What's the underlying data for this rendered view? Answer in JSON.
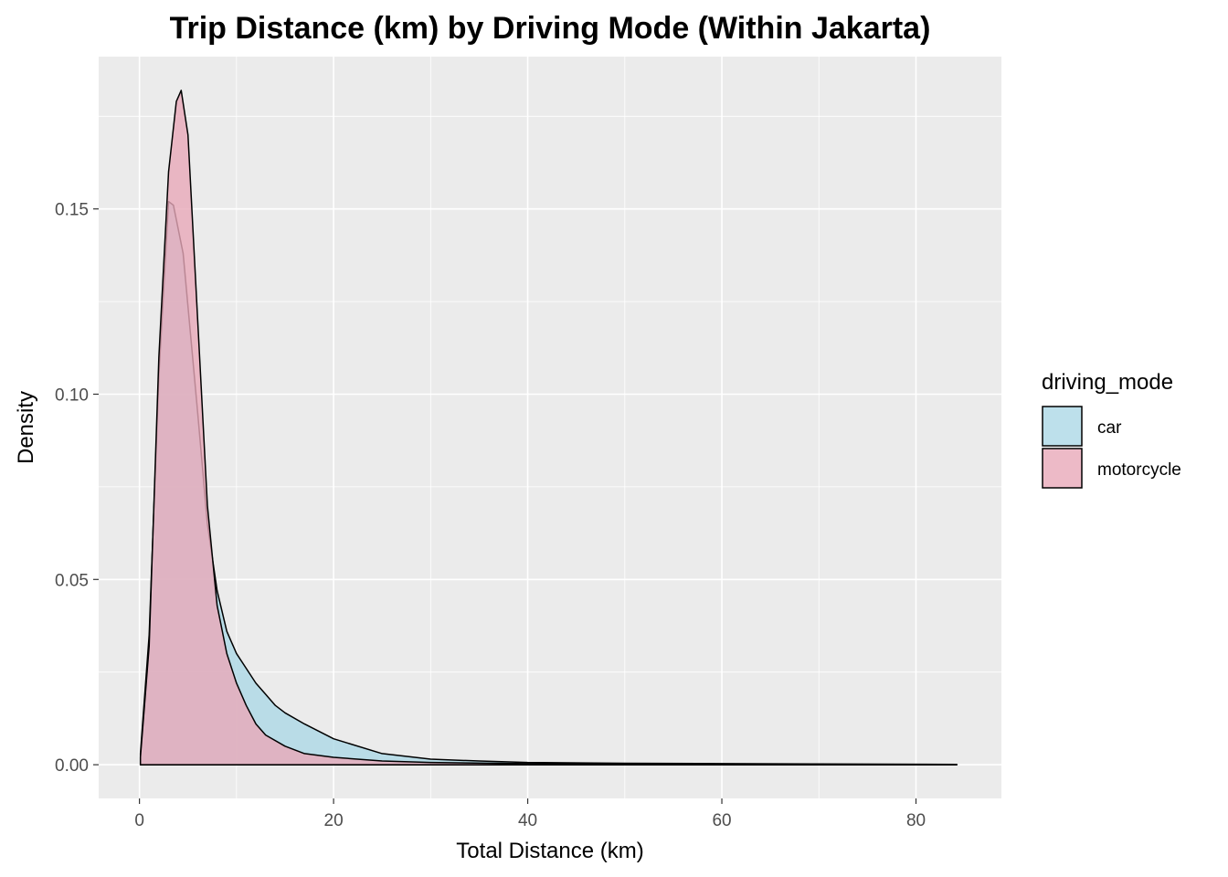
{
  "chart_data": {
    "type": "area",
    "title": "Trip Distance (km) by Driving Mode (Within Jakarta)",
    "xlabel": "Total Distance (km)",
    "ylabel": "Density",
    "xlim": [
      -4.2,
      88.8
    ],
    "ylim": [
      -0.0091,
      0.1911
    ],
    "x_ticks": [
      0,
      20,
      40,
      60,
      80
    ],
    "x_tick_labels": [
      "0",
      "20",
      "40",
      "60",
      "80"
    ],
    "y_ticks": [
      0.0,
      0.05,
      0.1,
      0.15
    ],
    "y_tick_labels": [
      "0.00",
      "0.05",
      "0.10",
      "0.15"
    ],
    "grid": true,
    "background_color": "#ebebeb",
    "legend": {
      "title": "driving_mode",
      "position": "right",
      "entries": [
        "car",
        "motorcycle"
      ]
    },
    "series": [
      {
        "name": "car",
        "color": "#add8e6",
        "x": [
          0.1,
          1,
          2,
          3,
          3.5,
          4.5,
          6,
          7,
          8,
          9,
          10,
          11,
          12,
          13,
          14,
          15,
          17,
          20,
          25,
          30,
          35,
          40,
          50,
          60,
          70,
          84.2
        ],
        "y": [
          0.003,
          0.035,
          0.105,
          0.152,
          0.151,
          0.138,
          0.095,
          0.065,
          0.047,
          0.036,
          0.03,
          0.026,
          0.022,
          0.019,
          0.016,
          0.014,
          0.011,
          0.007,
          0.003,
          0.0015,
          0.001,
          0.0006,
          0.0004,
          0.0003,
          0.0002,
          0.0001
        ]
      },
      {
        "name": "motorcycle",
        "color": "#e8a9b9",
        "x": [
          0.1,
          1,
          2,
          3,
          3.8,
          4.3,
          5,
          6,
          7,
          8,
          9,
          10,
          11,
          12,
          13,
          15,
          17,
          20,
          25,
          30,
          40,
          50,
          60,
          84.2
        ],
        "y": [
          0.002,
          0.032,
          0.11,
          0.16,
          0.179,
          0.182,
          0.17,
          0.12,
          0.07,
          0.043,
          0.03,
          0.022,
          0.016,
          0.011,
          0.008,
          0.005,
          0.003,
          0.002,
          0.001,
          0.0006,
          0.0003,
          0.0002,
          0.0001,
          0.0001
        ]
      }
    ]
  }
}
